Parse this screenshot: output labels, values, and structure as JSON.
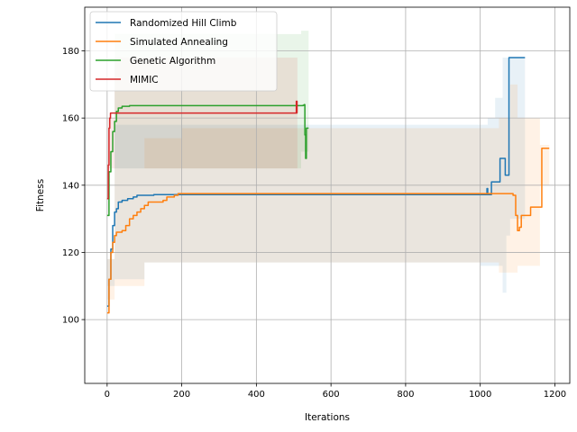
{
  "chart_data": {
    "type": "line",
    "title": "",
    "xlabel": "Iterations",
    "ylabel": "Fitness",
    "xlim": [
      -60,
      1240
    ],
    "ylim": [
      81,
      193
    ],
    "xticks": [
      0,
      200,
      400,
      600,
      800,
      1000,
      1200
    ],
    "yticks": [
      100,
      120,
      140,
      160,
      180
    ],
    "grid": true,
    "legend_position": "top-left",
    "series": [
      {
        "name": "Randomized Hill Climb",
        "color": "#1f77b4",
        "points": [
          [
            0,
            104
          ],
          [
            5,
            112
          ],
          [
            10,
            121
          ],
          [
            15,
            128
          ],
          [
            20,
            132
          ],
          [
            25,
            133
          ],
          [
            30,
            135
          ],
          [
            40,
            135.5
          ],
          [
            50,
            135.5
          ],
          [
            55,
            136
          ],
          [
            70,
            136.5
          ],
          [
            80,
            137
          ],
          [
            120,
            137
          ],
          [
            125,
            137.2
          ],
          [
            1015,
            137.2
          ],
          [
            1018,
            139
          ],
          [
            1020,
            137.2
          ],
          [
            1025,
            137.2
          ],
          [
            1030,
            141
          ],
          [
            1050,
            141
          ],
          [
            1053,
            148
          ],
          [
            1065,
            148
          ],
          [
            1067,
            143
          ],
          [
            1075,
            143
          ],
          [
            1077,
            178
          ],
          [
            1120,
            178
          ]
        ],
        "band": [
          [
            0,
            90,
            118
          ],
          [
            20,
            110,
            158
          ],
          [
            100,
            112,
            158
          ],
          [
            200,
            117,
            158
          ],
          [
            1000,
            117,
            158
          ],
          [
            1020,
            116,
            160
          ],
          [
            1040,
            116,
            166
          ],
          [
            1060,
            116,
            178
          ],
          [
            1070,
            108,
            178
          ],
          [
            1080,
            125,
            178
          ],
          [
            1120,
            130,
            178
          ]
        ]
      },
      {
        "name": "Simulated Annealing",
        "color": "#ff7f0e",
        "points": [
          [
            0,
            102
          ],
          [
            5,
            112
          ],
          [
            10,
            120
          ],
          [
            15,
            123
          ],
          [
            20,
            125
          ],
          [
            25,
            126
          ],
          [
            40,
            126.5
          ],
          [
            50,
            128
          ],
          [
            60,
            130
          ],
          [
            70,
            131
          ],
          [
            80,
            132
          ],
          [
            90,
            133
          ],
          [
            100,
            134
          ],
          [
            110,
            135
          ],
          [
            150,
            135.5
          ],
          [
            160,
            136.5
          ],
          [
            180,
            137
          ],
          [
            190,
            137.5
          ],
          [
            1080,
            137.5
          ],
          [
            1088,
            137
          ],
          [
            1095,
            131
          ],
          [
            1100,
            126.5
          ],
          [
            1105,
            127.5
          ],
          [
            1110,
            131
          ],
          [
            1135,
            133.5
          ],
          [
            1160,
            133.5
          ],
          [
            1165,
            151
          ],
          [
            1185,
            151
          ]
        ],
        "band": [
          [
            0,
            95,
            118
          ],
          [
            20,
            106,
            145
          ],
          [
            100,
            110,
            154
          ],
          [
            200,
            117,
            157
          ],
          [
            1050,
            117,
            160
          ],
          [
            1080,
            114,
            170
          ],
          [
            1100,
            114,
            160
          ],
          [
            1160,
            116,
            152
          ],
          [
            1185,
            140,
            160
          ]
        ]
      },
      {
        "name": "Genetic Algorithm",
        "color": "#2ca02c",
        "points": [
          [
            0,
            131
          ],
          [
            5,
            144
          ],
          [
            10,
            150
          ],
          [
            15,
            156
          ],
          [
            20,
            159
          ],
          [
            25,
            162
          ],
          [
            30,
            163
          ],
          [
            40,
            163.5
          ],
          [
            60,
            163.7
          ],
          [
            520,
            163.7
          ],
          [
            525,
            163.8
          ],
          [
            528,
            164
          ],
          [
            530,
            155
          ],
          [
            532,
            148
          ],
          [
            534,
            157
          ],
          [
            540,
            157
          ]
        ],
        "band": [
          [
            0,
            120,
            145
          ],
          [
            20,
            145,
            185
          ],
          [
            100,
            145,
            185
          ],
          [
            520,
            145,
            186
          ],
          [
            540,
            150,
            186
          ]
        ]
      },
      {
        "name": "MIMIC",
        "color": "#d62728",
        "points": [
          [
            0,
            136
          ],
          [
            3,
            146
          ],
          [
            5,
            157
          ],
          [
            7,
            160
          ],
          [
            9,
            161.5
          ],
          [
            505,
            161.5
          ],
          [
            507,
            165
          ],
          [
            509,
            161.5
          ],
          [
            510,
            161.5
          ]
        ],
        "band": [
          [
            0,
            140,
            160
          ],
          [
            20,
            145,
            178
          ],
          [
            510,
            145,
            178
          ]
        ]
      }
    ]
  }
}
